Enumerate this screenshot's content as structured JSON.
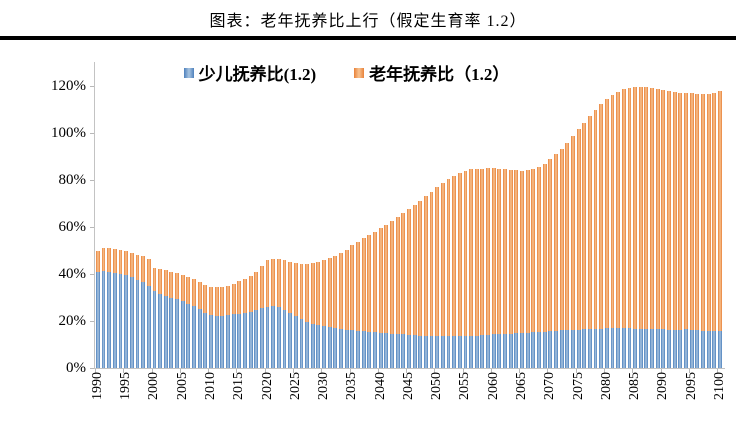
{
  "header": {
    "title": "图表：老年抚养比上行（假定生育率 1.2）"
  },
  "chart_data": {
    "type": "bar",
    "stacked": true,
    "title": "图表：老年抚养比上行（假定生育率 1.2）",
    "xlabel": "",
    "ylabel": "",
    "ylim": [
      0,
      120
    ],
    "grid": false,
    "legend_position": "top",
    "axis_color": "#c3c3c3",
    "y_tick_labels": [
      "0%",
      "20%",
      "40%",
      "60%",
      "80%",
      "100%",
      "120%"
    ],
    "x_tick_years": [
      1990,
      1995,
      2000,
      2005,
      2010,
      2015,
      2020,
      2025,
      2030,
      2035,
      2040,
      2045,
      2050,
      2055,
      2060,
      2065,
      2070,
      2075,
      2080,
      2085,
      2090,
      2095,
      2100
    ],
    "categories": [
      1990,
      1991,
      1992,
      1993,
      1994,
      1995,
      1996,
      1997,
      1998,
      1999,
      2000,
      2001,
      2002,
      2003,
      2004,
      2005,
      2006,
      2007,
      2008,
      2009,
      2010,
      2011,
      2012,
      2013,
      2014,
      2015,
      2016,
      2017,
      2018,
      2019,
      2020,
      2021,
      2022,
      2023,
      2024,
      2025,
      2026,
      2027,
      2028,
      2029,
      2030,
      2031,
      2032,
      2033,
      2034,
      2035,
      2036,
      2037,
      2038,
      2039,
      2040,
      2041,
      2042,
      2043,
      2044,
      2045,
      2046,
      2047,
      2048,
      2049,
      2050,
      2051,
      2052,
      2053,
      2054,
      2055,
      2056,
      2057,
      2058,
      2059,
      2060,
      2061,
      2062,
      2063,
      2064,
      2065,
      2066,
      2067,
      2068,
      2069,
      2070,
      2071,
      2072,
      2073,
      2074,
      2075,
      2076,
      2077,
      2078,
      2079,
      2080,
      2081,
      2082,
      2083,
      2084,
      2085,
      2086,
      2087,
      2088,
      2089,
      2090,
      2091,
      2092,
      2093,
      2094,
      2095,
      2096,
      2097,
      2098,
      2099,
      2100
    ],
    "series": [
      {
        "name": "少儿抚养比(1.2)",
        "color_edge": "#4E81BD",
        "color_center": "#A8C4E0",
        "values": [
          41.0,
          41.2,
          41.0,
          40.4,
          39.9,
          39.4,
          38.6,
          37.6,
          36.5,
          35.0,
          32.6,
          31.5,
          30.6,
          29.9,
          29.3,
          28.4,
          27.3,
          26.2,
          25.0,
          23.6,
          22.5,
          22.2,
          22.3,
          22.5,
          22.8,
          23.0,
          23.4,
          23.9,
          24.6,
          25.5,
          26.1,
          26.3,
          25.8,
          24.8,
          23.5,
          22.0,
          20.8,
          19.7,
          18.8,
          18.2,
          17.8,
          17.3,
          16.9,
          16.6,
          16.3,
          16.1,
          15.8,
          15.6,
          15.4,
          15.2,
          15.0,
          14.8,
          14.6,
          14.4,
          14.3,
          14.1,
          14.0,
          13.8,
          13.7,
          13.6,
          13.6,
          13.5,
          13.5,
          13.5,
          13.6,
          13.6,
          13.7,
          13.8,
          14.0,
          14.1,
          14.3,
          14.4,
          14.5,
          14.6,
          14.8,
          14.9,
          15.1,
          15.2,
          15.4,
          15.5,
          15.7,
          15.9,
          16.0,
          16.1,
          16.2,
          16.3,
          16.5,
          16.6,
          16.7,
          16.8,
          16.9,
          16.9,
          17.0,
          16.9,
          16.9,
          16.8,
          16.8,
          16.7,
          16.6,
          16.5,
          16.4,
          16.2,
          16.1,
          16.2,
          16.4,
          16.2,
          16.0,
          15.8,
          15.7,
          15.8,
          15.9
        ]
      },
      {
        "name": "老年抚养比（1.2）",
        "color_edge": "#E8823A",
        "color_center": "#F8C391",
        "values": [
          8.8,
          9.9,
          10.2,
          10.2,
          10.2,
          10.2,
          10.3,
          10.6,
          11.0,
          11.4,
          9.9,
          10.5,
          10.9,
          11.1,
          11.1,
          11.3,
          11.5,
          11.6,
          11.8,
          11.9,
          12.0,
          12.1,
          12.3,
          12.6,
          13.0,
          13.9,
          14.5,
          15.3,
          16.4,
          17.8,
          19.8,
          20.2,
          20.5,
          21.1,
          21.7,
          22.6,
          23.5,
          24.6,
          25.8,
          27.1,
          28.2,
          29.5,
          30.8,
          32.2,
          34.0,
          36.4,
          38.0,
          39.6,
          41.2,
          42.8,
          44.5,
          46.2,
          47.9,
          49.7,
          51.5,
          53.4,
          55.3,
          57.4,
          59.5,
          61.5,
          63.4,
          65.3,
          66.9,
          68.4,
          69.5,
          70.4,
          70.8,
          70.9,
          70.8,
          70.8,
          70.7,
          70.4,
          70.1,
          69.8,
          69.4,
          69.1,
          69.0,
          69.3,
          70.1,
          71.5,
          73.3,
          75.1,
          77.2,
          79.7,
          82.4,
          85.2,
          87.9,
          90.6,
          93.1,
          95.4,
          97.4,
          99.2,
          100.6,
          101.8,
          102.4,
          102.8,
          102.8,
          102.7,
          102.5,
          102.2,
          101.9,
          101.7,
          101.4,
          101.0,
          100.6,
          100.7,
          100.8,
          100.9,
          101.0,
          101.1,
          101.9
        ]
      }
    ]
  }
}
